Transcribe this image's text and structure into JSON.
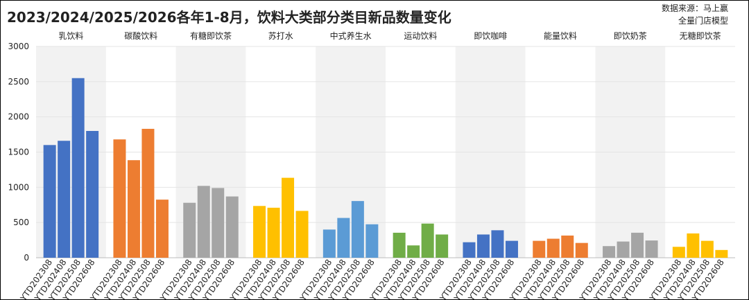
{
  "chart_data": {
    "type": "bar",
    "title": "2023/2024/2025/2026各年1-8月，饮料大类部分类目新品数量变化",
    "source": [
      "数据来源：马上赢",
      "全量门店模型"
    ],
    "categories": [
      "YTD202308",
      "YTD202408",
      "YTD202508",
      "YTD202608"
    ],
    "groups": [
      {
        "name": "乳饮料",
        "color": "#4472c4",
        "values": [
          1600,
          1660,
          2550,
          1800
        ]
      },
      {
        "name": "碳酸饮料",
        "color": "#ed7d31",
        "values": [
          1680,
          1385,
          1830,
          825
        ]
      },
      {
        "name": "有糖即饮茶",
        "color": "#a5a5a5",
        "values": [
          780,
          1020,
          990,
          870
        ]
      },
      {
        "name": "苏打水",
        "color": "#ffc000",
        "values": [
          735,
          710,
          1135,
          665
        ]
      },
      {
        "name": "中式养生水",
        "color": "#5b9bd5",
        "values": [
          400,
          565,
          805,
          475
        ]
      },
      {
        "name": "运动饮料",
        "color": "#70ad47",
        "values": [
          355,
          175,
          485,
          330
        ]
      },
      {
        "name": "即饮咖啡",
        "color": "#4472c4",
        "values": [
          220,
          330,
          390,
          240
        ]
      },
      {
        "name": "能量饮料",
        "color": "#ed7d31",
        "values": [
          240,
          270,
          315,
          210
        ]
      },
      {
        "name": "即饮奶茶",
        "color": "#a5a5a5",
        "values": [
          165,
          230,
          355,
          245
        ]
      },
      {
        "name": "无糖即饮茶",
        "color": "#ffc000",
        "values": [
          155,
          345,
          240,
          110
        ]
      }
    ],
    "ylim": [
      0,
      3000
    ],
    "yticks": [
      0,
      500,
      1000,
      1500,
      2000,
      2500,
      3000
    ],
    "grid": true
  }
}
